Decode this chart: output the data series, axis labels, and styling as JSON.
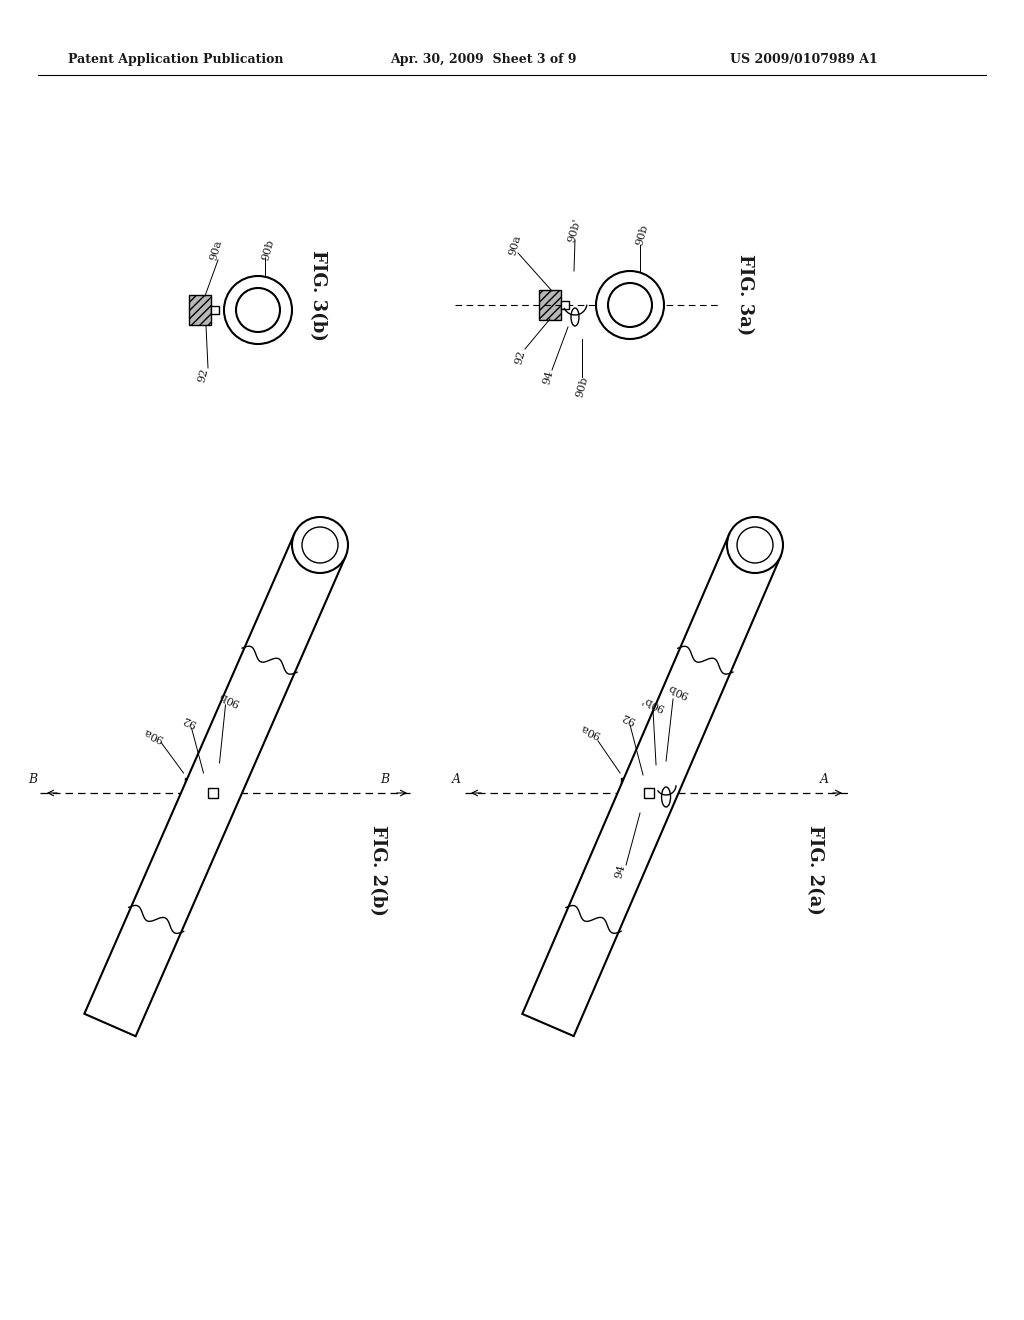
{
  "bg_color": "#ffffff",
  "header_left": "Patent Application Publication",
  "header_mid": "Apr. 30, 2009  Sheet 3 of 9",
  "header_right": "US 2009/0107989 A1",
  "text_color": "#1a1a1a",
  "gray_fill": "#b0b0b0",
  "lw_thin": 1.0,
  "lw_med": 1.5,
  "lw_thick": 2.2
}
